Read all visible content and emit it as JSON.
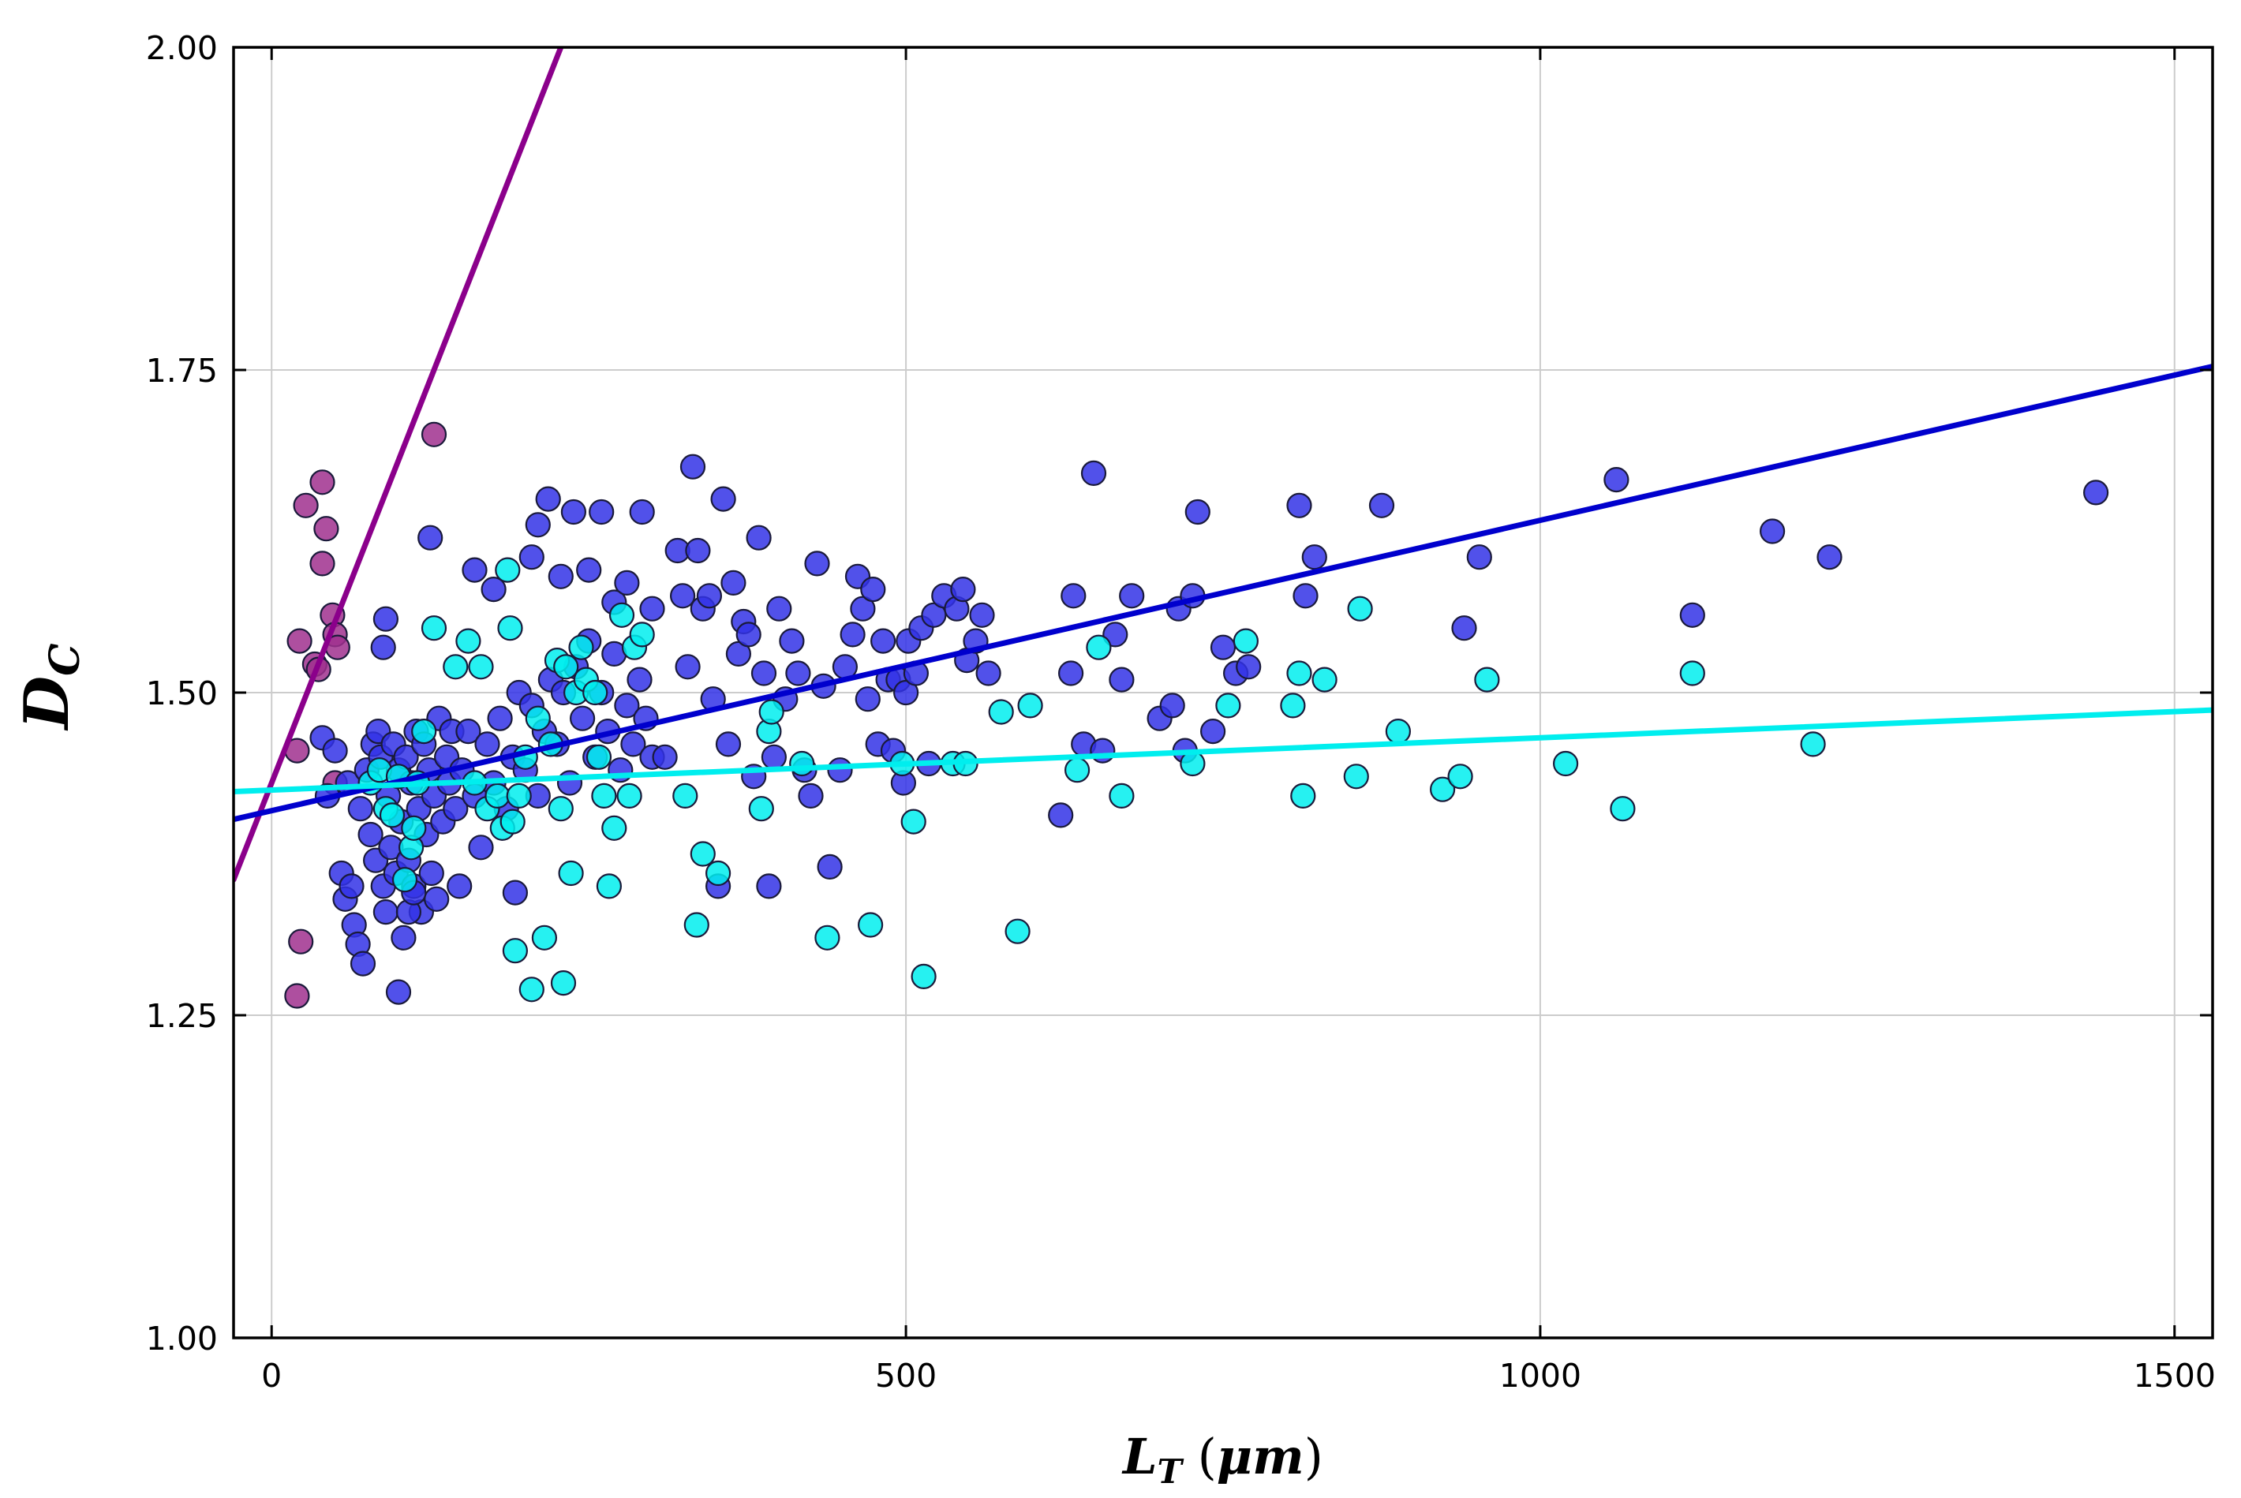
{
  "chart_data": {
    "type": "scatter",
    "title": "",
    "xlabel": "L_T (μm)",
    "ylabel": "D_C",
    "xlim": [
      -30,
      1530
    ],
    "ylim": [
      1.0,
      2.0
    ],
    "x_ticks": [
      0,
      500,
      1000,
      1500
    ],
    "y_ticks": [
      1.0,
      1.25,
      1.5,
      1.75,
      2.0
    ],
    "x_tick_labels": [
      "0",
      "500",
      "1000",
      "1500"
    ],
    "y_tick_labels": [
      "1.00",
      "1.25",
      "1.50",
      "1.75",
      "2.00"
    ],
    "grid": true,
    "legend": "none",
    "series": [
      {
        "name": "purple",
        "color": "#a0308e",
        "line_color": "#8b008b",
        "fit": {
          "slope": 0.0025,
          "intercept": 1.43
        },
        "points": [
          [
            20,
            1.265
          ],
          [
            23,
            1.307
          ],
          [
            20,
            1.455
          ],
          [
            22,
            1.54
          ],
          [
            27,
            1.645
          ],
          [
            34,
            1.522
          ],
          [
            37,
            1.518
          ],
          [
            40,
            1.663
          ],
          [
            40,
            1.6
          ],
          [
            43,
            1.627
          ],
          [
            48,
            1.56
          ],
          [
            50,
            1.545
          ],
          [
            52,
            1.535
          ],
          [
            50,
            1.43
          ],
          [
            128,
            1.7
          ]
        ]
      },
      {
        "name": "blue",
        "color": "#3333e6",
        "line_color": "#0000cd",
        "fit": {
          "slope": 0.000225,
          "intercept": 1.4085
        },
        "points": [
          [
            40,
            1.465
          ],
          [
            44,
            1.42
          ],
          [
            50,
            1.455
          ],
          [
            55,
            1.36
          ],
          [
            58,
            1.34
          ],
          [
            60,
            1.43
          ],
          [
            63,
            1.35
          ],
          [
            65,
            1.32
          ],
          [
            68,
            1.305
          ],
          [
            70,
            1.41
          ],
          [
            72,
            1.29
          ],
          [
            75,
            1.44
          ],
          [
            78,
            1.39
          ],
          [
            80,
            1.46
          ],
          [
            82,
            1.37
          ],
          [
            84,
            1.47
          ],
          [
            86,
            1.45
          ],
          [
            88,
            1.35
          ],
          [
            90,
            1.33
          ],
          [
            92,
            1.42
          ],
          [
            94,
            1.38
          ],
          [
            96,
            1.46
          ],
          [
            98,
            1.36
          ],
          [
            100,
            1.44
          ],
          [
            102,
            1.4
          ],
          [
            104,
            1.31
          ],
          [
            106,
            1.45
          ],
          [
            108,
            1.37
          ],
          [
            110,
            1.43
          ],
          [
            112,
            1.35
          ],
          [
            114,
            1.47
          ],
          [
            116,
            1.41
          ],
          [
            118,
            1.33
          ],
          [
            120,
            1.46
          ],
          [
            122,
            1.39
          ],
          [
            124,
            1.44
          ],
          [
            126,
            1.36
          ],
          [
            128,
            1.42
          ],
          [
            130,
            1.34
          ],
          [
            132,
            1.48
          ],
          [
            135,
            1.4
          ],
          [
            138,
            1.45
          ],
          [
            140,
            1.43
          ],
          [
            142,
            1.47
          ],
          [
            145,
            1.41
          ],
          [
            148,
            1.35
          ],
          [
            150,
            1.44
          ],
          [
            155,
            1.47
          ],
          [
            160,
            1.42
          ],
          [
            165,
            1.38
          ],
          [
            170,
            1.46
          ],
          [
            175,
            1.43
          ],
          [
            180,
            1.48
          ],
          [
            185,
            1.41
          ],
          [
            190,
            1.45
          ],
          [
            195,
            1.5
          ],
          [
            200,
            1.44
          ],
          [
            205,
            1.49
          ],
          [
            210,
            1.42
          ],
          [
            215,
            1.47
          ],
          [
            220,
            1.51
          ],
          [
            225,
            1.46
          ],
          [
            230,
            1.5
          ],
          [
            235,
            1.43
          ],
          [
            240,
            1.52
          ],
          [
            245,
            1.48
          ],
          [
            250,
            1.54
          ],
          [
            255,
            1.45
          ],
          [
            260,
            1.5
          ],
          [
            265,
            1.47
          ],
          [
            270,
            1.53
          ],
          [
            275,
            1.44
          ],
          [
            280,
            1.49
          ],
          [
            285,
            1.46
          ],
          [
            290,
            1.51
          ],
          [
            295,
            1.48
          ],
          [
            300,
            1.45
          ],
          [
            88,
            1.535
          ],
          [
            90,
            1.557
          ],
          [
            100,
            1.268
          ],
          [
            108,
            1.33
          ],
          [
            112,
            1.345
          ],
          [
            125,
            1.62
          ],
          [
            160,
            1.595
          ],
          [
            175,
            1.58
          ],
          [
            192,
            1.345
          ],
          [
            205,
            1.605
          ],
          [
            210,
            1.63
          ],
          [
            218,
            1.65
          ],
          [
            228,
            1.59
          ],
          [
            238,
            1.64
          ],
          [
            250,
            1.595
          ],
          [
            260,
            1.64
          ],
          [
            270,
            1.57
          ],
          [
            280,
            1.585
          ],
          [
            292,
            1.64
          ],
          [
            300,
            1.565
          ],
          [
            310,
            1.45
          ],
          [
            320,
            1.61
          ],
          [
            324,
            1.575
          ],
          [
            328,
            1.52
          ],
          [
            332,
            1.675
          ],
          [
            336,
            1.61
          ],
          [
            340,
            1.565
          ],
          [
            345,
            1.575
          ],
          [
            348,
            1.495
          ],
          [
            352,
            1.35
          ],
          [
            356,
            1.65
          ],
          [
            360,
            1.46
          ],
          [
            364,
            1.585
          ],
          [
            368,
            1.53
          ],
          [
            372,
            1.555
          ],
          [
            376,
            1.545
          ],
          [
            380,
            1.435
          ],
          [
            384,
            1.62
          ],
          [
            388,
            1.515
          ],
          [
            392,
            1.35
          ],
          [
            396,
            1.45
          ],
          [
            400,
            1.565
          ],
          [
            405,
            1.495
          ],
          [
            410,
            1.54
          ],
          [
            415,
            1.515
          ],
          [
            420,
            1.44
          ],
          [
            425,
            1.42
          ],
          [
            430,
            1.6
          ],
          [
            435,
            1.505
          ],
          [
            440,
            1.365
          ],
          [
            448,
            1.44
          ],
          [
            452,
            1.52
          ],
          [
            458,
            1.545
          ],
          [
            462,
            1.59
          ],
          [
            466,
            1.565
          ],
          [
            470,
            1.495
          ],
          [
            474,
            1.58
          ],
          [
            478,
            1.46
          ],
          [
            482,
            1.54
          ],
          [
            486,
            1.51
          ],
          [
            490,
            1.455
          ],
          [
            494,
            1.51
          ],
          [
            498,
            1.43
          ],
          [
            500,
            1.5
          ],
          [
            502,
            1.54
          ],
          [
            508,
            1.515
          ],
          [
            512,
            1.55
          ],
          [
            518,
            1.445
          ],
          [
            522,
            1.56
          ],
          [
            530,
            1.575
          ],
          [
            540,
            1.565
          ],
          [
            545,
            1.58
          ],
          [
            548,
            1.525
          ],
          [
            555,
            1.54
          ],
          [
            560,
            1.56
          ],
          [
            565,
            1.515
          ],
          [
            622,
            1.405
          ],
          [
            630,
            1.515
          ],
          [
            632,
            1.575
          ],
          [
            640,
            1.46
          ],
          [
            648,
            1.67
          ],
          [
            655,
            1.455
          ],
          [
            665,
            1.545
          ],
          [
            670,
            1.51
          ],
          [
            678,
            1.575
          ],
          [
            700,
            1.48
          ],
          [
            710,
            1.49
          ],
          [
            715,
            1.565
          ],
          [
            720,
            1.455
          ],
          [
            726,
            1.575
          ],
          [
            730,
            1.64
          ],
          [
            742,
            1.47
          ],
          [
            750,
            1.535
          ],
          [
            760,
            1.515
          ],
          [
            770,
            1.52
          ],
          [
            810,
            1.645
          ],
          [
            815,
            1.575
          ],
          [
            822,
            1.605
          ],
          [
            875,
            1.645
          ],
          [
            940,
            1.55
          ],
          [
            952,
            1.605
          ],
          [
            1060,
            1.665
          ],
          [
            1120,
            1.56
          ],
          [
            1183,
            1.625
          ],
          [
            1228,
            1.605
          ],
          [
            1438,
            1.655
          ]
        ]
      },
      {
        "name": "cyan",
        "color": "#00eeee",
        "line_color": "#00eeee",
        "fit": {
          "slope": 4.05e-05,
          "intercept": 1.4245
        },
        "points": [
          [
            78,
            1.43
          ],
          [
            85,
            1.44
          ],
          [
            90,
            1.41
          ],
          [
            95,
            1.405
          ],
          [
            100,
            1.435
          ],
          [
            105,
            1.355
          ],
          [
            110,
            1.38
          ],
          [
            112,
            1.395
          ],
          [
            115,
            1.43
          ],
          [
            120,
            1.47
          ],
          [
            128,
            1.55
          ],
          [
            145,
            1.52
          ],
          [
            155,
            1.54
          ],
          [
            160,
            1.43
          ],
          [
            165,
            1.52
          ],
          [
            170,
            1.41
          ],
          [
            178,
            1.42
          ],
          [
            182,
            1.395
          ],
          [
            186,
            1.595
          ],
          [
            188,
            1.55
          ],
          [
            190,
            1.4
          ],
          [
            192,
            1.3
          ],
          [
            195,
            1.42
          ],
          [
            200,
            1.45
          ],
          [
            205,
            1.27
          ],
          [
            210,
            1.48
          ],
          [
            215,
            1.31
          ],
          [
            220,
            1.46
          ],
          [
            225,
            1.525
          ],
          [
            228,
            1.41
          ],
          [
            230,
            1.275
          ],
          [
            232,
            1.52
          ],
          [
            236,
            1.36
          ],
          [
            240,
            1.5
          ],
          [
            244,
            1.535
          ],
          [
            248,
            1.51
          ],
          [
            255,
            1.5
          ],
          [
            258,
            1.45
          ],
          [
            262,
            1.42
          ],
          [
            266,
            1.35
          ],
          [
            270,
            1.395
          ],
          [
            276,
            1.56
          ],
          [
            282,
            1.42
          ],
          [
            286,
            1.535
          ],
          [
            292,
            1.545
          ],
          [
            326,
            1.42
          ],
          [
            335,
            1.32
          ],
          [
            340,
            1.375
          ],
          [
            352,
            1.36
          ],
          [
            386,
            1.41
          ],
          [
            392,
            1.47
          ],
          [
            394,
            1.485
          ],
          [
            418,
            1.445
          ],
          [
            438,
            1.31
          ],
          [
            472,
            1.32
          ],
          [
            497,
            1.445
          ],
          [
            506,
            1.4
          ],
          [
            514,
            1.28
          ],
          [
            537,
            1.445
          ],
          [
            547,
            1.445
          ],
          [
            575,
            1.485
          ],
          [
            588,
            1.315
          ],
          [
            598,
            1.49
          ],
          [
            635,
            1.44
          ],
          [
            652,
            1.535
          ],
          [
            670,
            1.42
          ],
          [
            726,
            1.445
          ],
          [
            754,
            1.49
          ],
          [
            768,
            1.54
          ],
          [
            805,
            1.49
          ],
          [
            810,
            1.515
          ],
          [
            813,
            1.42
          ],
          [
            830,
            1.51
          ],
          [
            855,
            1.435
          ],
          [
            858,
            1.565
          ],
          [
            888,
            1.47
          ],
          [
            923,
            1.425
          ],
          [
            937,
            1.435
          ],
          [
            958,
            1.51
          ],
          [
            1020,
            1.445
          ],
          [
            1065,
            1.41
          ],
          [
            1120,
            1.515
          ],
          [
            1215,
            1.46
          ]
        ]
      }
    ]
  }
}
